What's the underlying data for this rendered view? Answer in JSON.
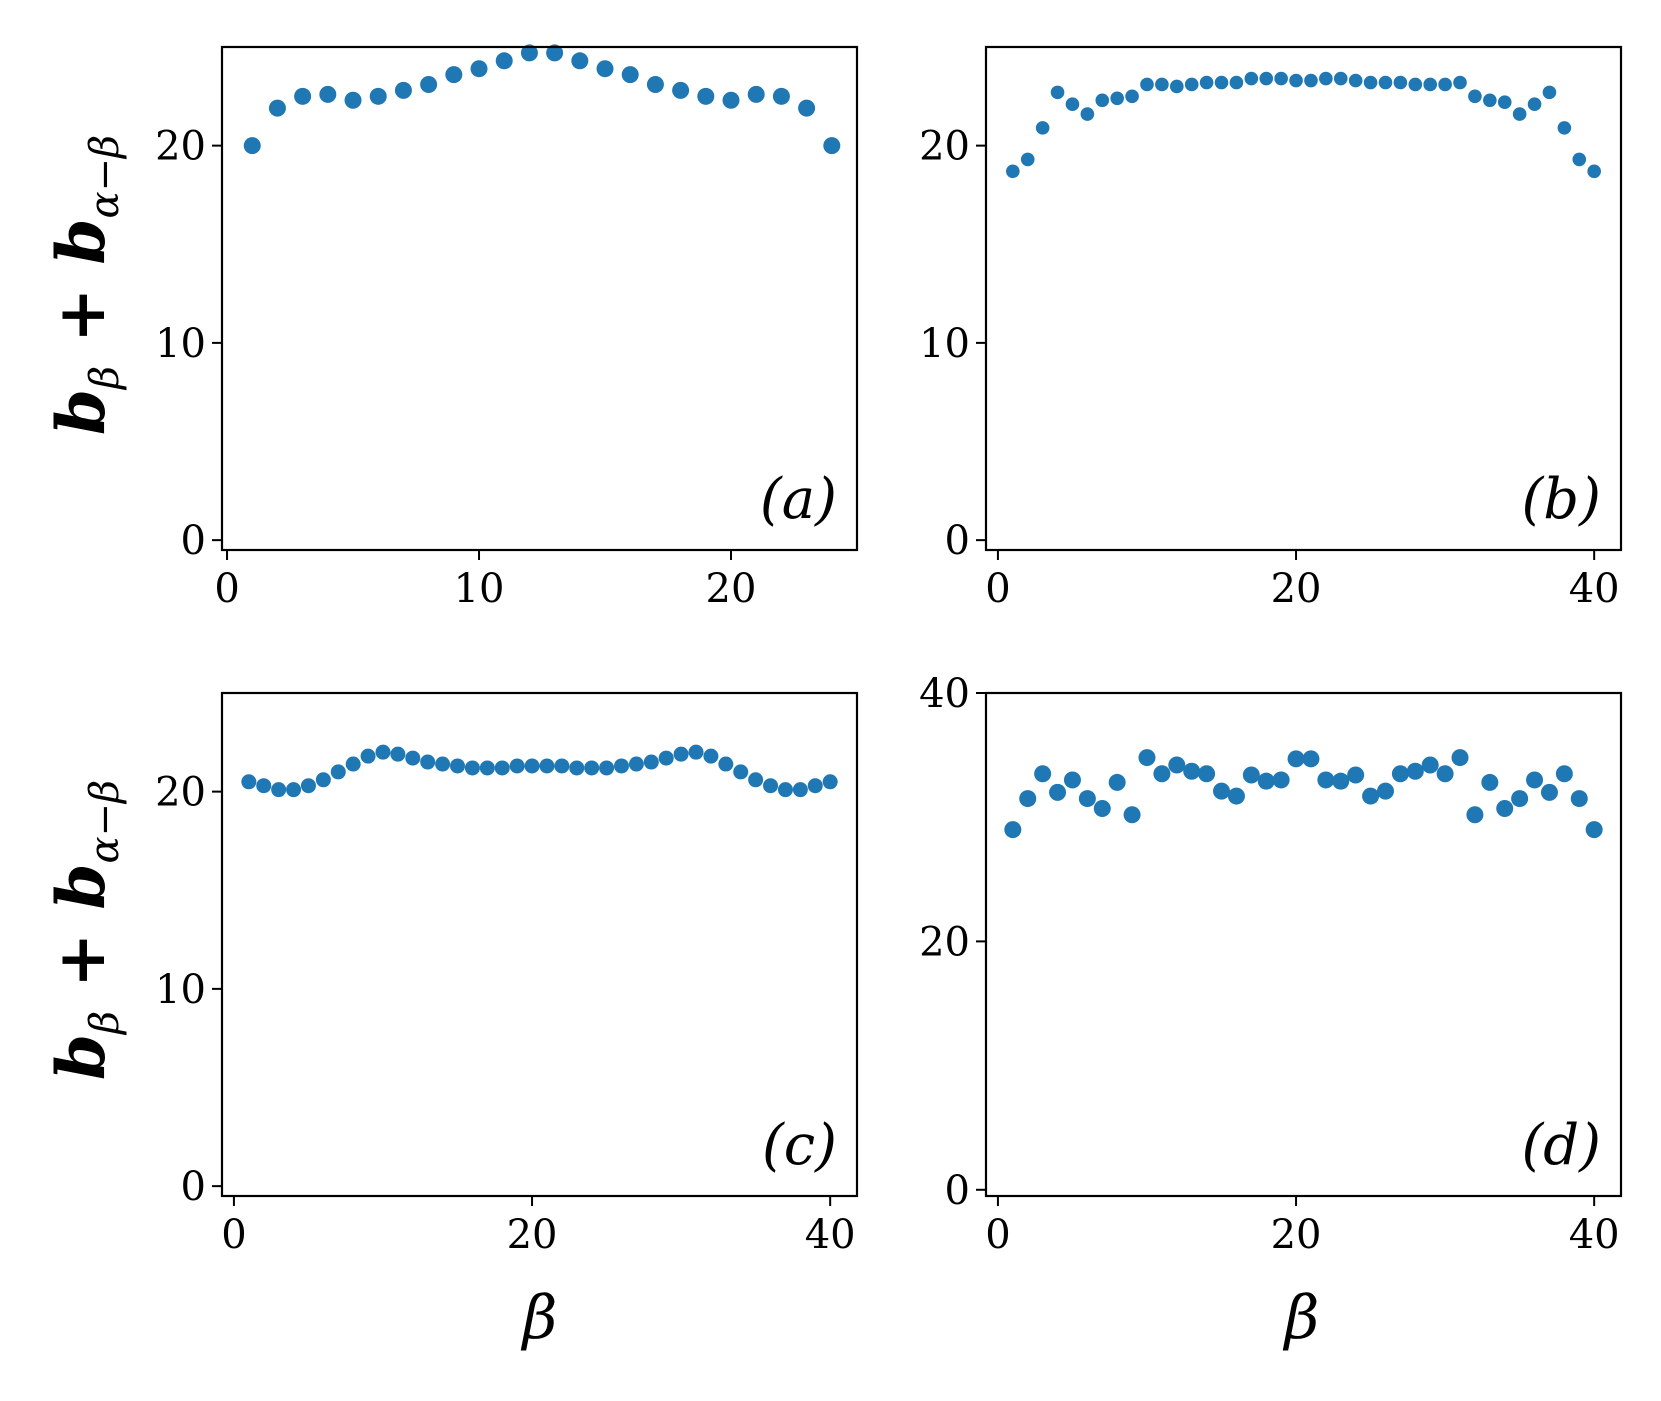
{
  "figure": {
    "ylabel_parts": {
      "b1": "b",
      "sub1": "β",
      "plus": " + ",
      "b2": "b",
      "sub2": "α−β"
    },
    "xlabel": "β",
    "marker_color": "#1f77b4"
  },
  "chart_data": [
    {
      "id": "a",
      "type": "scatter",
      "panel_label": "(a)",
      "xlim": [
        -0.2,
        25
      ],
      "ylim": [
        -0.5,
        25
      ],
      "xticks": [
        0,
        10,
        20
      ],
      "yticks": [
        0,
        10,
        20
      ],
      "x": [
        1,
        2,
        3,
        4,
        5,
        6,
        7,
        8,
        9,
        10,
        11,
        12,
        13,
        14,
        15,
        16,
        17,
        18,
        19,
        20,
        21,
        22,
        23,
        24
      ],
      "y": [
        20.0,
        21.9,
        22.5,
        22.6,
        22.3,
        22.5,
        22.8,
        23.1,
        23.6,
        23.9,
        24.3,
        24.7,
        24.7,
        24.3,
        23.9,
        23.6,
        23.1,
        22.8,
        22.5,
        22.3,
        22.6,
        22.5,
        21.9,
        20.0
      ]
    },
    {
      "id": "b",
      "type": "scatter",
      "panel_label": "(b)",
      "xlim": [
        -0.8,
        41.8
      ],
      "ylim": [
        -0.5,
        25
      ],
      "xticks": [
        0,
        20,
        40
      ],
      "yticks": [
        0,
        10,
        20
      ],
      "x": [
        1,
        2,
        3,
        4,
        5,
        6,
        7,
        8,
        9,
        10,
        11,
        12,
        13,
        14,
        15,
        16,
        17,
        18,
        19,
        20,
        21,
        22,
        23,
        24,
        25,
        26,
        27,
        28,
        29,
        30,
        31,
        32,
        33,
        34,
        35,
        36,
        37,
        38,
        39,
        40
      ],
      "y": [
        18.7,
        19.3,
        20.9,
        22.7,
        22.1,
        21.6,
        22.3,
        22.4,
        22.5,
        23.1,
        23.1,
        23.0,
        23.1,
        23.2,
        23.2,
        23.2,
        23.4,
        23.4,
        23.4,
        23.3,
        23.3,
        23.4,
        23.4,
        23.3,
        23.2,
        23.2,
        23.2,
        23.1,
        23.1,
        23.1,
        23.2,
        22.5,
        22.3,
        22.2,
        21.6,
        22.1,
        22.7,
        20.9,
        19.3,
        18.7
      ]
    },
    {
      "id": "c",
      "type": "scatter",
      "panel_label": "(c)",
      "xlim": [
        -0.8,
        41.8
      ],
      "ylim": [
        -0.5,
        25
      ],
      "xticks": [
        0,
        20,
        40
      ],
      "yticks": [
        0,
        10,
        20
      ],
      "x": [
        1,
        2,
        3,
        4,
        5,
        6,
        7,
        8,
        9,
        10,
        11,
        12,
        13,
        14,
        15,
        16,
        17,
        18,
        19,
        20,
        21,
        22,
        23,
        24,
        25,
        26,
        27,
        28,
        29,
        30,
        31,
        32,
        33,
        34,
        35,
        36,
        37,
        38,
        39,
        40
      ],
      "y": [
        20.5,
        20.3,
        20.1,
        20.1,
        20.3,
        20.6,
        21.0,
        21.4,
        21.8,
        22.0,
        21.9,
        21.7,
        21.5,
        21.4,
        21.3,
        21.2,
        21.2,
        21.2,
        21.3,
        21.3,
        21.3,
        21.3,
        21.2,
        21.2,
        21.2,
        21.3,
        21.4,
        21.5,
        21.7,
        21.9,
        22.0,
        21.8,
        21.4,
        21.0,
        20.6,
        20.3,
        20.1,
        20.1,
        20.3,
        20.5
      ]
    },
    {
      "id": "d",
      "type": "scatter",
      "panel_label": "(d)",
      "xlim": [
        -0.8,
        41.8
      ],
      "ylim": [
        -0.5,
        40
      ],
      "xticks": [
        0,
        20,
        40
      ],
      "yticks": [
        0,
        20,
        40
      ],
      "x": [
        1,
        2,
        3,
        4,
        5,
        6,
        7,
        8,
        9,
        10,
        11,
        12,
        13,
        14,
        15,
        16,
        17,
        18,
        19,
        20,
        21,
        22,
        23,
        24,
        25,
        26,
        27,
        28,
        29,
        30,
        31,
        32,
        33,
        34,
        35,
        36,
        37,
        38,
        39,
        40
      ],
      "y": [
        29.0,
        31.5,
        33.5,
        32.0,
        33.0,
        31.5,
        30.7,
        32.8,
        30.2,
        34.8,
        33.5,
        34.2,
        33.7,
        33.5,
        32.1,
        31.7,
        33.4,
        32.9,
        33.0,
        34.7,
        34.7,
        33.0,
        32.9,
        33.4,
        31.7,
        32.1,
        33.5,
        33.7,
        34.2,
        33.5,
        34.8,
        30.2,
        32.8,
        30.7,
        31.5,
        33.0,
        32.0,
        33.5,
        31.5,
        29.0
      ]
    }
  ]
}
